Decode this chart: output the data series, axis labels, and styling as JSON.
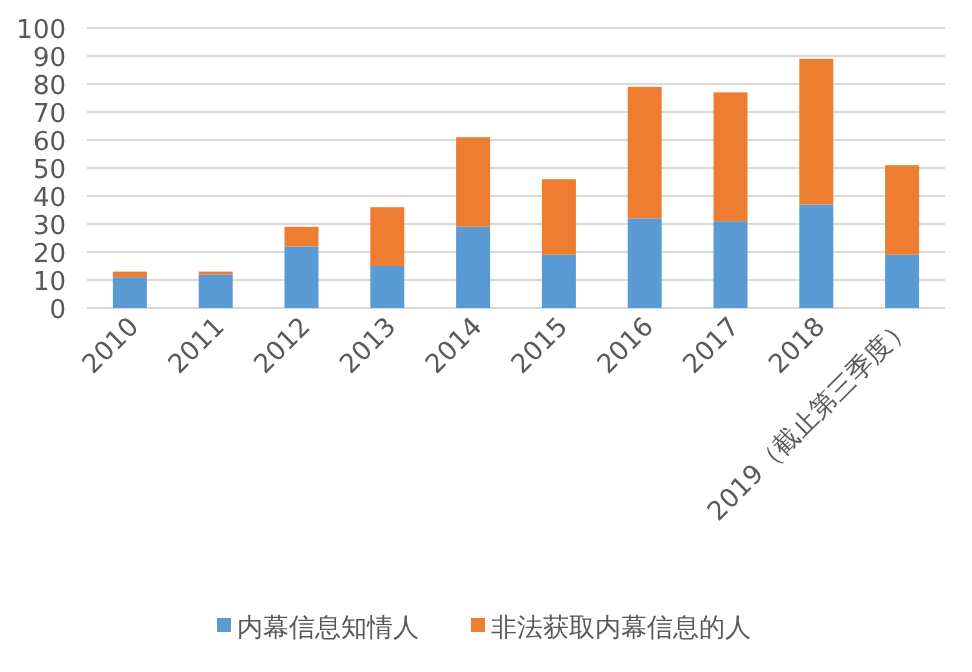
{
  "chart_data": {
    "type": "bar",
    "stacked": true,
    "categories": [
      "2010",
      "2011",
      "2012",
      "2013",
      "2014",
      "2015",
      "2016",
      "2017",
      "2018",
      "2019（截止第三季度）"
    ],
    "series": [
      {
        "name": "内幕信息知情人",
        "color": "#5b9bd5",
        "values": [
          11,
          12,
          22,
          15,
          29,
          19,
          32,
          31,
          37,
          19
        ]
      },
      {
        "name": "非法获取内幕信息的人",
        "color": "#ed7d31",
        "values": [
          2,
          1,
          7,
          21,
          32,
          27,
          47,
          46,
          52,
          32
        ]
      }
    ],
    "ylim": [
      0,
      100
    ],
    "yticks": [
      0,
      10,
      20,
      30,
      40,
      50,
      60,
      70,
      80,
      90,
      100
    ],
    "grid": "y",
    "legend": "bottom"
  }
}
